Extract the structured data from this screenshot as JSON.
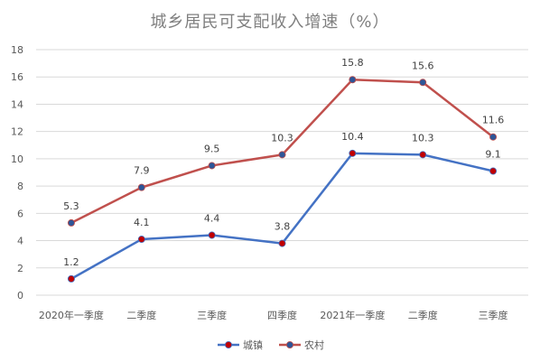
{
  "chart_data": {
    "type": "line",
    "title": "城乡居民可支配收入增速（%）",
    "categories": [
      "2020年一季度",
      "二季度",
      "三季度",
      "四季度",
      "2021年一季度",
      "二季度",
      "三季度"
    ],
    "series": [
      {
        "name": "城镇",
        "values": [
          1.2,
          4.1,
          4.4,
          3.8,
          10.4,
          10.3,
          9.1
        ],
        "line_color": "#4472C4",
        "marker_color": "#C00000"
      },
      {
        "name": "农村",
        "values": [
          5.3,
          7.9,
          9.5,
          10.3,
          15.8,
          15.6,
          11.6
        ],
        "line_color": "#C0504D",
        "marker_color": "#2E5597"
      }
    ],
    "value_labels": {
      "series_0": [
        "1.2",
        "4.1",
        "4.4",
        "3.8",
        "10.4",
        "10.3",
        "9.1"
      ],
      "series_1": [
        "5.3",
        "7.9",
        "9.5",
        "10.3",
        "15.8",
        "15.6",
        "11.6"
      ]
    },
    "yaxis": {
      "min": 0,
      "max": 18,
      "step": 2,
      "tick_labels": [
        "0",
        "2",
        "4",
        "6",
        "8",
        "10",
        "12",
        "14",
        "16",
        "18"
      ]
    },
    "grid": true,
    "legend_position": "bottom"
  }
}
